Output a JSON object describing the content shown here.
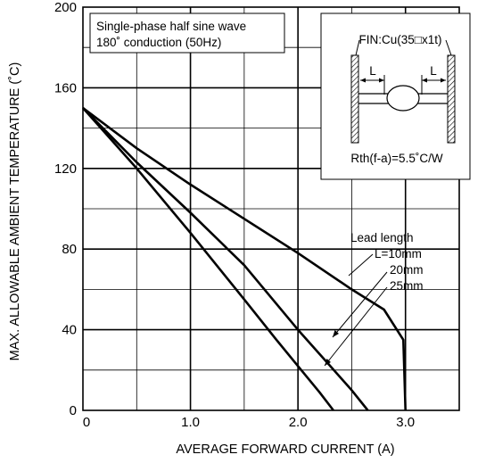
{
  "chart_data": {
    "type": "line",
    "title": "",
    "xlabel": "AVERAGE FORWARD CURRENT (A)",
    "ylabel": "MAX. ALLOWABLE AMBIENT TEMPERATURE (˚C)",
    "xlim": [
      0,
      3.5
    ],
    "ylim": [
      0,
      200
    ],
    "x_ticks": [
      0,
      0.5,
      1.0,
      1.5,
      2.0,
      2.5,
      3.0,
      3.5
    ],
    "x_tick_labels": [
      "0",
      "",
      "1.0",
      "",
      "2.0",
      "",
      "3.0",
      ""
    ],
    "y_ticks": [
      0,
      20,
      40,
      60,
      80,
      100,
      120,
      140,
      160,
      180,
      200
    ],
    "y_tick_labels": [
      "0",
      "",
      "40",
      "",
      "80",
      "",
      "120",
      "",
      "160",
      "",
      "200"
    ],
    "grid": true,
    "condition_note": [
      "Single-phase half sine wave",
      "180˚ conduction (50Hz)"
    ],
    "inset": {
      "fin_label": "FIN:Cu(35□x1t)",
      "lead_label_left": "L",
      "lead_label_right": "L",
      "rth_label": "Rth(f-a)=5.5˚C/W"
    },
    "legend_title": "Lead length",
    "series": [
      {
        "name": "L=10mm",
        "x": [
          0,
          0.5,
          1.0,
          1.5,
          2.0,
          2.5,
          2.8,
          2.98,
          3.0
        ],
        "y": [
          150,
          130,
          112,
          95,
          78,
          60,
          50,
          35,
          0
        ]
      },
      {
        "name": "20mm",
        "x": [
          0,
          0.5,
          1.0,
          1.5,
          2.0,
          2.3,
          2.5,
          2.65
        ],
        "y": [
          150,
          123,
          98,
          72,
          40,
          22,
          10,
          0
        ]
      },
      {
        "name": "25mm",
        "x": [
          0,
          0.5,
          1.0,
          1.5,
          1.8,
          2.0,
          2.2,
          2.33
        ],
        "y": [
          150,
          120,
          88,
          55,
          35,
          22,
          9,
          0
        ]
      }
    ],
    "colors": {
      "line": "#000000",
      "grid": "#000000",
      "background": "#ffffff"
    }
  }
}
